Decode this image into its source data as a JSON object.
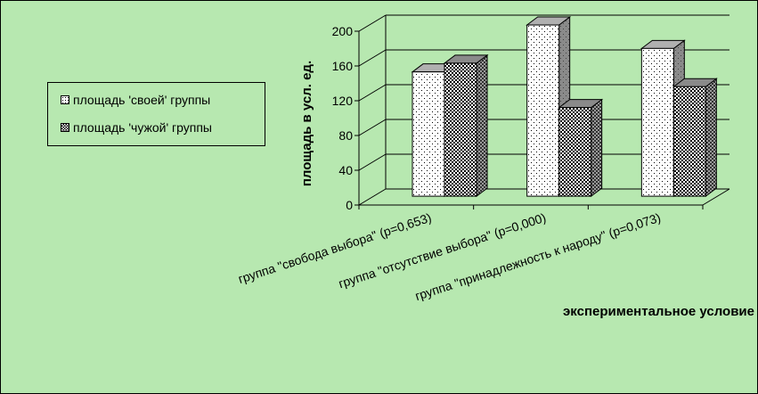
{
  "colors": {
    "background": "#b7e8b0",
    "own_fill": "#ffffff",
    "own_side": "#8a8a8a",
    "other_fill": "#000000",
    "other_side": "#7a7a7a",
    "line": "#000000"
  },
  "legend": {
    "items": [
      {
        "label": "площадь 'своей' группы",
        "pattern": "sparse-dots"
      },
      {
        "label": "площадь 'чужой' группы",
        "pattern": "checker"
      }
    ]
  },
  "chart_data": {
    "type": "bar",
    "variant": "3d-clustered",
    "categories": [
      "группа \"свобода выбора\" (p=0,653)",
      "группа \"отсутствие выбора\" (p=0,000)",
      "группа \"принадлежность к народу\" (p=0,073)"
    ],
    "series": [
      {
        "name": "площадь 'своей' группы",
        "values": [
          143,
          197,
          170
        ]
      },
      {
        "name": "площадь 'чужой' группы",
        "values": [
          153,
          102,
          126
        ]
      }
    ],
    "ylabel": "площадь в усл. ед.",
    "xlabel": "экспериментальное условие",
    "ylim": [
      0,
      200
    ],
    "yticks": [
      "0",
      "40",
      "80",
      "120",
      "160",
      "200"
    ],
    "grid": true,
    "legend_position": "left"
  }
}
